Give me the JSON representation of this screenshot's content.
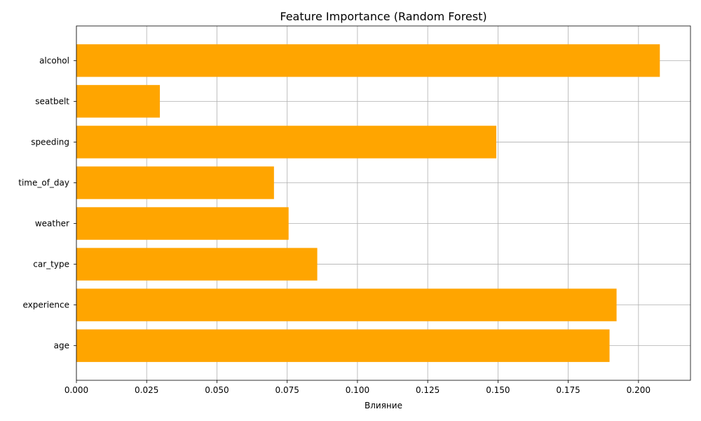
{
  "chart_data": {
    "type": "bar",
    "orientation": "horizontal",
    "title": "Feature Importance (Random Forest)",
    "xlabel": "Влияние",
    "ylabel": "",
    "categories": [
      "age",
      "experience",
      "car_type",
      "weather",
      "time_of_day",
      "speeding",
      "seatbelt",
      "alcohol"
    ],
    "values": [
      0.1897,
      0.1922,
      0.0857,
      0.0755,
      0.0703,
      0.1494,
      0.0297,
      0.2076
    ],
    "xlim": [
      0,
      0.2185
    ],
    "xticks": [
      0.0,
      0.025,
      0.05,
      0.075,
      0.1,
      0.125,
      0.15,
      0.175,
      0.2
    ],
    "xtick_labels": [
      "0.000",
      "0.025",
      "0.050",
      "0.075",
      "0.100",
      "0.125",
      "0.150",
      "0.175",
      "0.200"
    ],
    "grid": true,
    "legend": "none",
    "bar_color": "#ffa500",
    "grid_color": "#b0b0b0"
  }
}
